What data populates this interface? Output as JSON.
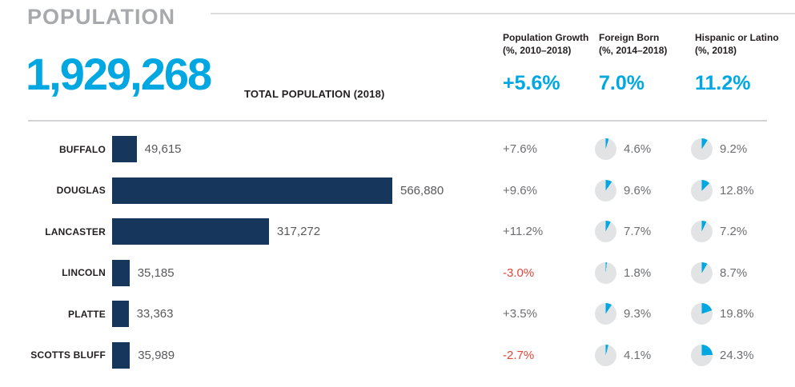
{
  "colors": {
    "accent": "#00a7e0",
    "navy": "#16365c",
    "negative": "#e0453a",
    "pie_bg": "#e2e3e4",
    "title_gray": "#a7a9ac"
  },
  "header": {
    "title": "POPULATION",
    "total_value": "1,929,268",
    "total_label": "TOTAL POPULATION (2018)",
    "columns": [
      {
        "line1": "Population Growth",
        "line2": "(%, 2010–2018)",
        "value": "+5.6%"
      },
      {
        "line1": "Foreign Born",
        "line2": "(%, 2014–2018)",
        "value": "7.0%"
      },
      {
        "line1": "Hispanic or Latino",
        "line2": "(%, 2018)",
        "value": "11.2%"
      }
    ]
  },
  "rows": [
    {
      "county": "BUFFALO",
      "population": 49615,
      "population_label": "49,615",
      "growth_label": "+7.6%",
      "foreign_born_pct": 4.6,
      "foreign_born_label": "4.6%",
      "hispanic_pct": 9.2,
      "hispanic_label": "9.2%"
    },
    {
      "county": "DOUGLAS",
      "population": 566880,
      "population_label": "566,880",
      "growth_label": "+9.6%",
      "foreign_born_pct": 9.6,
      "foreign_born_label": "9.6%",
      "hispanic_pct": 12.8,
      "hispanic_label": "12.8%"
    },
    {
      "county": "LANCASTER",
      "population": 317272,
      "population_label": "317,272",
      "growth_label": "+11.2%",
      "foreign_born_pct": 7.7,
      "foreign_born_label": "7.7%",
      "hispanic_pct": 7.2,
      "hispanic_label": "7.2%"
    },
    {
      "county": "LINCOLN",
      "population": 35185,
      "population_label": "35,185",
      "growth_label": "-3.0%",
      "foreign_born_pct": 1.8,
      "foreign_born_label": "1.8%",
      "hispanic_pct": 8.7,
      "hispanic_label": "8.7%"
    },
    {
      "county": "PLATTE",
      "population": 33363,
      "population_label": "33,363",
      "growth_label": "+3.5%",
      "foreign_born_pct": 9.3,
      "foreign_born_label": "9.3%",
      "hispanic_pct": 19.8,
      "hispanic_label": "19.8%"
    },
    {
      "county": "SCOTTS BLUFF",
      "population": 35989,
      "population_label": "35,989",
      "growth_label": "-2.7%",
      "foreign_born_pct": 4.1,
      "foreign_born_label": "4.1%",
      "hispanic_pct": 24.3,
      "hispanic_label": "24.3%"
    }
  ],
  "chart_data": {
    "type": "bar",
    "orientation": "horizontal",
    "title": "POPULATION",
    "subtitle": "TOTAL POPULATION (2018): 1,929,268",
    "categories": [
      "BUFFALO",
      "DOUGLAS",
      "LANCASTER",
      "LINCOLN",
      "PLATTE",
      "SCOTTS BLUFF"
    ],
    "series": [
      {
        "name": "Total Population (2018)",
        "values": [
          49615,
          566880,
          317272,
          35185,
          33363,
          35989
        ]
      },
      {
        "name": "Population Growth (%, 2010–2018)",
        "values": [
          7.6,
          9.6,
          11.2,
          -3.0,
          3.5,
          -2.7
        ]
      },
      {
        "name": "Foreign Born (%, 2014–2018)",
        "values": [
          4.6,
          9.6,
          7.7,
          1.8,
          9.3,
          4.1
        ]
      },
      {
        "name": "Hispanic or Latino (%, 2018)",
        "values": [
          9.2,
          12.8,
          7.2,
          8.7,
          19.8,
          24.3
        ]
      }
    ],
    "totals": {
      "total_population_2018": 1929268,
      "population_growth_pct_2010_2018": 5.6,
      "foreign_born_pct_2014_2018": 7.0,
      "hispanic_or_latino_pct_2018": 11.2
    },
    "xlim": [
      0,
      566880
    ],
    "grid": false,
    "legend": false,
    "bar_color": "#16365c",
    "accent_color": "#00a7e0",
    "negative_color": "#e0453a"
  }
}
